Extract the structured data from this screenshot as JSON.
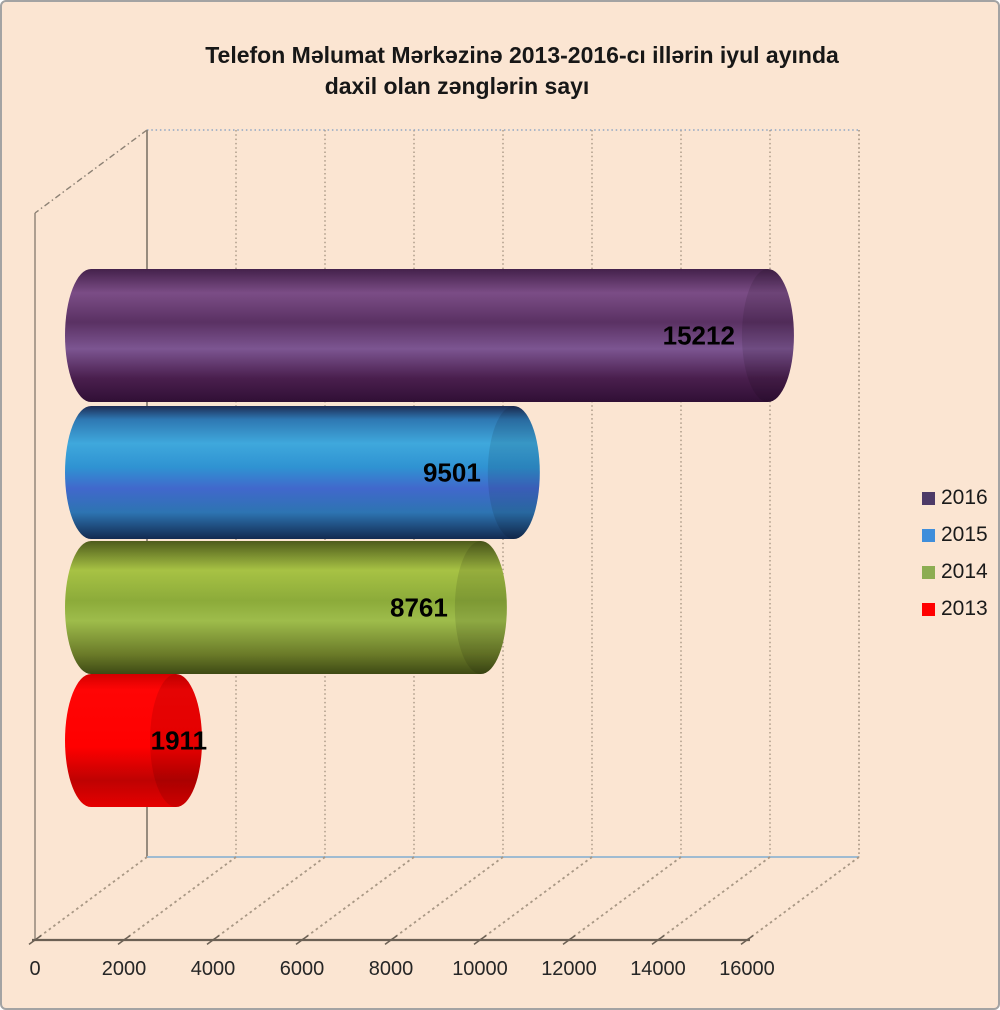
{
  "window": {
    "background": "#FBE5D2",
    "border_color": "#A3A3A3"
  },
  "title": {
    "line1": "Telefon Məlumat Mərkəzinə 2013-2016-cı illərin iyul ayında",
    "line2": "daxil olan zənglərin sayı"
  },
  "chart_data": {
    "type": "bar",
    "subtype": "3d-cylinder-horizontal",
    "title": "Telefon Məlumat Mərkəzinə 2013-2016-cı illərin iyul ayında daxil olan zənglərin sayı",
    "categories": [
      "2016",
      "2015",
      "2014",
      "2013"
    ],
    "values": [
      15212,
      9501,
      8761,
      1911
    ],
    "xlim": [
      0,
      16000
    ],
    "x_tick_labels": [
      "0",
      "2000",
      "4000",
      "6000",
      "8000",
      "10000",
      "12000",
      "14000",
      "16000"
    ],
    "grid": true,
    "legend_position": "right",
    "background": "#FBE5D2",
    "series": [
      {
        "name": "2016",
        "value": 15212,
        "color": "#4D3A67",
        "gradient": [
          [
            "0%",
            "#44214B"
          ],
          [
            "18%",
            "#7B4D86"
          ],
          [
            "40%",
            "#5A3163"
          ],
          [
            "60%",
            "#7C5591"
          ],
          [
            "82%",
            "#4A1F4E"
          ],
          [
            "100%",
            "#300F35"
          ]
        ]
      },
      {
        "name": "2015",
        "value": 9501,
        "color": "#3F8EDB",
        "gradient": [
          [
            "0%",
            "#1D2C55"
          ],
          [
            "10%",
            "#2E77B2"
          ],
          [
            "28%",
            "#3FA8DC"
          ],
          [
            "46%",
            "#2F93D2"
          ],
          [
            "62%",
            "#4168CC"
          ],
          [
            "80%",
            "#2D74B2"
          ],
          [
            "100%",
            "#132A50"
          ]
        ]
      },
      {
        "name": "2014",
        "value": 8761,
        "color": "#8CAD52",
        "gradient": [
          [
            "0%",
            "#4F5C1C"
          ],
          [
            "22%",
            "#A7C244"
          ],
          [
            "45%",
            "#8CAB3A"
          ],
          [
            "60%",
            "#9EBC4B"
          ],
          [
            "85%",
            "#6B7B29"
          ],
          [
            "100%",
            "#3E4A15"
          ]
        ]
      },
      {
        "name": "2013",
        "value": 1911,
        "color": "#FF0000",
        "gradient": [
          [
            "0%",
            "#D40000"
          ],
          [
            "12%",
            "#FF0505"
          ],
          [
            "55%",
            "#FF0000"
          ],
          [
            "80%",
            "#BE0202"
          ],
          [
            "100%",
            "#E60000"
          ]
        ]
      }
    ]
  },
  "legend": {
    "items": [
      {
        "label": "2016",
        "color": "#4D3A67"
      },
      {
        "label": "2015",
        "color": "#3F8EDB"
      },
      {
        "label": "2014",
        "color": "#8CAD52"
      },
      {
        "label": "2013",
        "color": "#FF0000"
      }
    ]
  }
}
